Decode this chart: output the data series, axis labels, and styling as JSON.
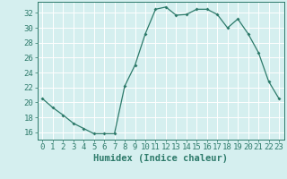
{
  "x": [
    0,
    1,
    2,
    3,
    4,
    5,
    6,
    7,
    8,
    9,
    10,
    11,
    12,
    13,
    14,
    15,
    16,
    17,
    18,
    19,
    20,
    21,
    22,
    23
  ],
  "y": [
    20.5,
    19.3,
    18.3,
    17.2,
    16.5,
    15.8,
    15.8,
    15.8,
    22.2,
    25.0,
    29.2,
    32.5,
    32.8,
    31.7,
    31.8,
    32.5,
    32.5,
    31.8,
    30.0,
    31.2,
    29.2,
    26.7,
    22.8,
    20.5
  ],
  "line_color": "#2d7a6a",
  "marker_color": "#2d7a6a",
  "bg_color": "#d5efef",
  "grid_major_color": "#c0d8d8",
  "grid_minor_color": "#ffffff",
  "xlabel": "Humidex (Indice chaleur)",
  "xlim": [
    -0.5,
    23.5
  ],
  "ylim": [
    15.0,
    33.5
  ],
  "yticks": [
    16,
    18,
    20,
    22,
    24,
    26,
    28,
    30,
    32
  ],
  "xticks": [
    0,
    1,
    2,
    3,
    4,
    5,
    6,
    7,
    8,
    9,
    10,
    11,
    12,
    13,
    14,
    15,
    16,
    17,
    18,
    19,
    20,
    21,
    22,
    23
  ],
  "tick_fontsize": 6.5,
  "label_fontsize": 7.5
}
